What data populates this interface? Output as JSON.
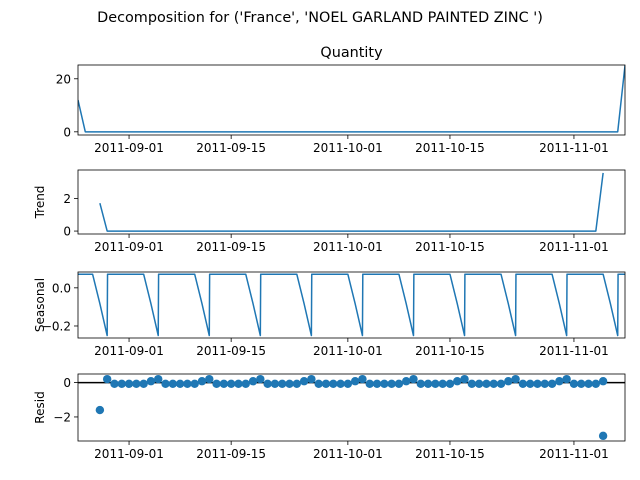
{
  "figure": {
    "suptitle": "Decomposition for ('France', 'NOEL GARLAND PAINTED ZINC ')"
  },
  "colors": {
    "series": "#1f77b4",
    "axis": "#000000",
    "zero_line": "#000000"
  },
  "chart_data": [
    {
      "type": "line",
      "title": "Quantity",
      "ylabel": "",
      "x_start": "2011-08-25",
      "x_end": "2011-11-08",
      "x_ticks": [
        "2011-09-01",
        "2011-09-15",
        "2011-10-01",
        "2011-10-15",
        "2011-11-01"
      ],
      "ylim": [
        -1.2,
        25.2
      ],
      "y_ticks": [
        0,
        20
      ],
      "x": [
        "2011-08-25",
        "2011-08-26",
        "2011-11-07",
        "2011-11-08"
      ],
      "y": [
        12,
        0,
        0,
        25
      ]
    },
    {
      "type": "line",
      "title": "",
      "ylabel": "Trend",
      "x_start": "2011-08-25",
      "x_end": "2011-11-08",
      "x_ticks": [
        "2011-09-01",
        "2011-09-15",
        "2011-10-01",
        "2011-10-15",
        "2011-11-01"
      ],
      "ylim": [
        -0.18,
        3.75
      ],
      "y_ticks": [
        0,
        2
      ],
      "x": [
        "2011-08-28",
        "2011-08-29",
        "2011-11-04",
        "2011-11-05"
      ],
      "y": [
        1.71,
        0,
        0,
        3.57
      ]
    },
    {
      "type": "line",
      "title": "",
      "ylabel": "Seasonal",
      "x_start": "2011-08-25",
      "x_end": "2011-11-08",
      "x_ticks": [
        "2011-09-01",
        "2011-09-15",
        "2011-10-01",
        "2011-10-15",
        "2011-11-01"
      ],
      "ylim": [
        -0.263,
        0.083
      ],
      "y_ticks": [
        -0.2,
        0.0
      ],
      "y_tick_labels": [
        "−0.2",
        "0.0"
      ],
      "period_start": "2011-08-25",
      "period_pattern": [
        0.0714,
        0.0714,
        0.0714,
        -0.0833,
        -0.25,
        0.0714,
        0.0714
      ],
      "period_pattern_days": [
        0,
        1,
        2,
        3,
        4,
        4.05,
        5
      ]
    },
    {
      "type": "scatter",
      "title": "",
      "ylabel": "Resid",
      "x_start": "2011-08-25",
      "x_end": "2011-11-08",
      "x_ticks": [
        "2011-09-01",
        "2011-09-15",
        "2011-10-01",
        "2011-10-15",
        "2011-11-01"
      ],
      "ylim": [
        -3.4,
        0.5
      ],
      "y_ticks": [
        -2,
        0
      ],
      "y_tick_labels": [
        "−2",
        "0"
      ],
      "zero_line": true,
      "x": [
        "2011-08-28",
        "2011-08-29",
        "2011-08-30",
        "2011-08-31",
        "2011-09-01",
        "2011-09-02",
        "2011-09-03",
        "2011-09-04",
        "2011-09-05",
        "2011-09-06",
        "2011-09-07",
        "2011-09-08",
        "2011-09-09",
        "2011-09-10",
        "2011-09-11",
        "2011-09-12",
        "2011-09-13",
        "2011-09-14",
        "2011-09-15",
        "2011-09-16",
        "2011-09-17",
        "2011-09-18",
        "2011-09-19",
        "2011-09-20",
        "2011-09-21",
        "2011-09-22",
        "2011-09-23",
        "2011-09-24",
        "2011-09-25",
        "2011-09-26",
        "2011-09-27",
        "2011-09-28",
        "2011-09-29",
        "2011-09-30",
        "2011-10-01",
        "2011-10-02",
        "2011-10-03",
        "2011-10-04",
        "2011-10-05",
        "2011-10-06",
        "2011-10-07",
        "2011-10-08",
        "2011-10-09",
        "2011-10-10",
        "2011-10-11",
        "2011-10-12",
        "2011-10-13",
        "2011-10-14",
        "2011-10-15",
        "2011-10-16",
        "2011-10-17",
        "2011-10-18",
        "2011-10-19",
        "2011-10-20",
        "2011-10-21",
        "2011-10-22",
        "2011-10-23",
        "2011-10-24",
        "2011-10-25",
        "2011-10-26",
        "2011-10-27",
        "2011-10-28",
        "2011-10-29",
        "2011-10-30",
        "2011-10-31",
        "2011-11-01",
        "2011-11-02",
        "2011-11-03",
        "2011-11-04",
        "2011-11-05"
      ],
      "y": [
        -1.6,
        0.2,
        -0.07,
        -0.07,
        -0.07,
        -0.07,
        -0.07,
        0.08,
        0.2,
        -0.07,
        -0.07,
        -0.07,
        -0.07,
        -0.07,
        0.08,
        0.2,
        -0.07,
        -0.07,
        -0.07,
        -0.07,
        -0.07,
        0.08,
        0.2,
        -0.07,
        -0.07,
        -0.07,
        -0.07,
        -0.07,
        0.08,
        0.2,
        -0.07,
        -0.07,
        -0.07,
        -0.07,
        -0.07,
        0.08,
        0.2,
        -0.07,
        -0.07,
        -0.07,
        -0.07,
        -0.07,
        0.08,
        0.2,
        -0.07,
        -0.07,
        -0.07,
        -0.07,
        -0.07,
        0.08,
        0.2,
        -0.07,
        -0.07,
        -0.07,
        -0.07,
        -0.07,
        0.08,
        0.2,
        -0.07,
        -0.07,
        -0.07,
        -0.07,
        -0.07,
        0.08,
        0.2,
        -0.07,
        -0.07,
        -0.07,
        -0.07,
        0.08
      ],
      "extra_x": [
        "2011-11-05"
      ],
      "extra_y": [
        -3.1
      ]
    }
  ]
}
